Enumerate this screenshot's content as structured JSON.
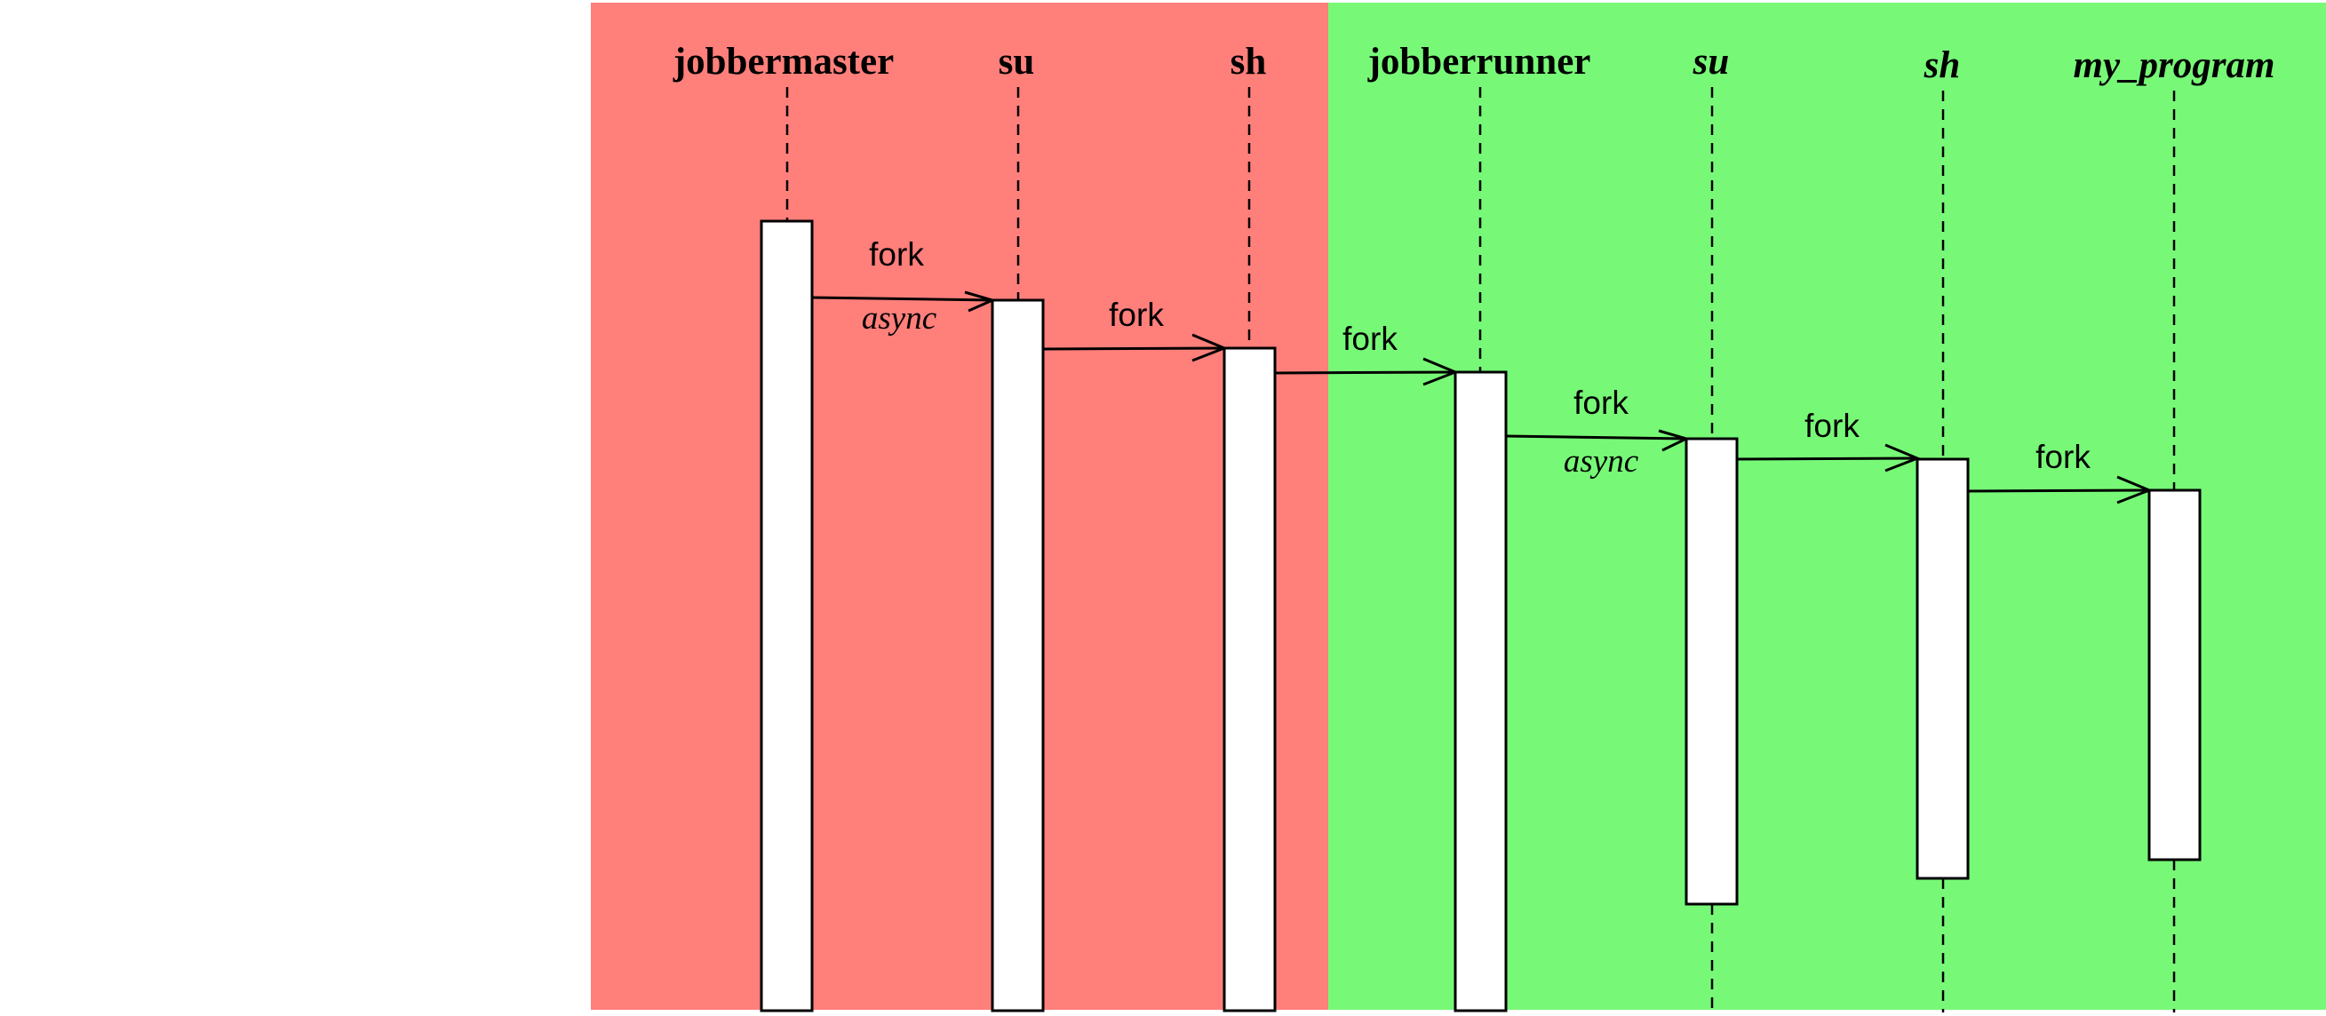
{
  "colors": {
    "background": "#ffffff",
    "left_group": "#ff7f7b",
    "right_group": "#77f977",
    "line": "#000000",
    "activation_fill": "#ffffff"
  },
  "groups": [
    {
      "name": "left-group",
      "color": "#ff7f7b"
    },
    {
      "name": "right-group",
      "color": "#77f977"
    }
  ],
  "participants": [
    {
      "id": "jobbermaster",
      "label": "jobbermaster",
      "italic": false
    },
    {
      "id": "su",
      "label": "su",
      "italic": false
    },
    {
      "id": "sh",
      "label": "sh",
      "italic": false
    },
    {
      "id": "jobberrunner",
      "label": "jobberrunner",
      "italic": false
    },
    {
      "id": "su-2",
      "label": "su",
      "italic": true
    },
    {
      "id": "sh-2",
      "label": "sh",
      "italic": true
    },
    {
      "id": "my-program",
      "label": "my_program",
      "italic": true
    }
  ],
  "messages": [
    {
      "label": "fork",
      "note": "async"
    },
    {
      "label": "fork",
      "note": ""
    },
    {
      "label": "fork",
      "note": ""
    },
    {
      "label": "fork",
      "note": "async"
    },
    {
      "label": "fork",
      "note": ""
    },
    {
      "label": "fork",
      "note": ""
    }
  ]
}
